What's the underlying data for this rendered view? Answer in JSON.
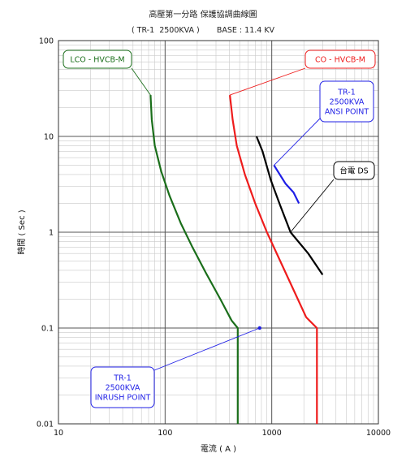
{
  "chart_data": {
    "type": "line",
    "title": "高壓第一分路 保護協調曲線圖",
    "subtitle": "( TR-1  2500KVA )       BASE : 11.4 KV",
    "xlabel": "電流 ( A )",
    "ylabel": "時間 ( Sec )",
    "xscale": "log",
    "yscale": "log",
    "xlim": [
      10,
      10000
    ],
    "ylim": [
      0.01,
      100
    ],
    "grid": true,
    "x_ticks": [
      "10",
      "100",
      "1000",
      "10000"
    ],
    "y_ticks": [
      "0.01",
      "0.1",
      "1",
      "10",
      "100"
    ],
    "series": [
      {
        "name": "LCO - HVCB-M",
        "color": "#1a6e1a",
        "points": [
          [
            73,
            27
          ],
          [
            75,
            15
          ],
          [
            80,
            8
          ],
          [
            92,
            4.3
          ],
          [
            110,
            2.4
          ],
          [
            140,
            1.25
          ],
          [
            180,
            0.7
          ],
          [
            240,
            0.38
          ],
          [
            330,
            0.2
          ],
          [
            420,
            0.12
          ],
          [
            480,
            0.1
          ],
          [
            480,
            0.01
          ]
        ]
      },
      {
        "name": "CO - HVCB-M",
        "color": "#ee1c1c",
        "points": [
          [
            405,
            27
          ],
          [
            430,
            15
          ],
          [
            470,
            8
          ],
          [
            560,
            4
          ],
          [
            700,
            2
          ],
          [
            900,
            1
          ],
          [
            1200,
            0.5
          ],
          [
            1600,
            0.25
          ],
          [
            2100,
            0.13
          ],
          [
            2650,
            0.1
          ],
          [
            2650,
            0.01
          ]
        ]
      },
      {
        "name": "台電 DS",
        "color": "#000000",
        "points": [
          [
            720,
            10
          ],
          [
            820,
            7
          ],
          [
            980,
            3.5
          ],
          [
            1200,
            1.9
          ],
          [
            1500,
            1
          ],
          [
            2200,
            0.6
          ],
          [
            3000,
            0.36
          ]
        ]
      },
      {
        "name": "TR-1 2500KVA ANSI POINT",
        "color": "#1f1fe6",
        "points": [
          [
            1050,
            5
          ],
          [
            1350,
            3.2
          ],
          [
            1600,
            2.6
          ],
          [
            1800,
            2
          ]
        ]
      }
    ],
    "inrush_point": {
      "x": 770,
      "y": 0.1,
      "color": "#1f1fe6"
    },
    "annotations": [
      {
        "id": "lco",
        "text": [
          "LCO - HVCB-M"
        ],
        "color": "#1a6e1a",
        "target": [
          73,
          27
        ]
      },
      {
        "id": "co",
        "text": [
          "CO - HVCB-M"
        ],
        "color": "#ee1c1c",
        "target": [
          405,
          27
        ]
      },
      {
        "id": "ansi",
        "text": [
          "TR-1",
          "2500KVA",
          "ANSI POINT"
        ],
        "color": "#1f1fe6",
        "target": [
          1050,
          5
        ]
      },
      {
        "id": "ds",
        "text": [
          "台電 DS"
        ],
        "color": "#000000",
        "target": [
          1500,
          1
        ]
      },
      {
        "id": "inrush",
        "text": [
          "TR-1",
          "2500KVA",
          "INRUSH POINT"
        ],
        "color": "#1f1fe6",
        "target": [
          770,
          0.1
        ]
      }
    ]
  }
}
